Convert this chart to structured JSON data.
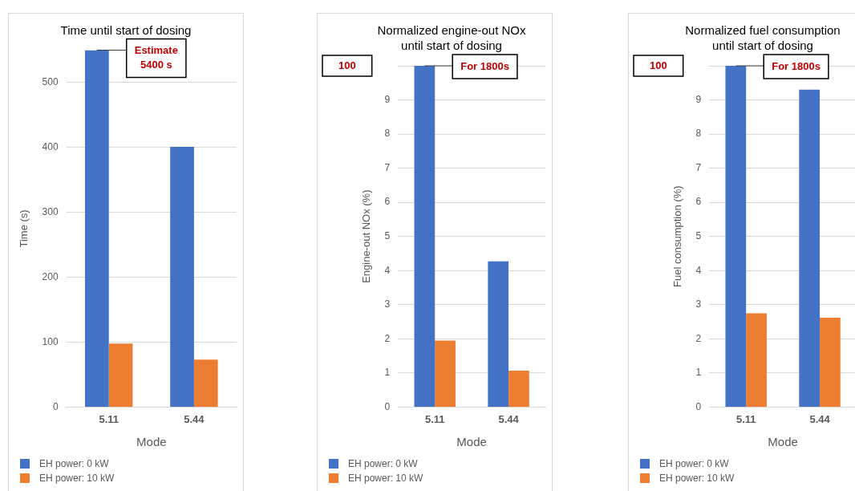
{
  "chart_data": [
    {
      "type": "bar",
      "title": "Time until start of dosing",
      "xlabel": "Mode",
      "ylabel": "Time (s)",
      "categories": [
        "5.11",
        "5.44"
      ],
      "series": [
        {
          "name": "EH power: 0 kW",
          "color": "#4472c4",
          "values": [
            550,
            401
          ]
        },
        {
          "name": "EH power: 10 kW",
          "color": "#ed7d31",
          "values": [
            98,
            73
          ]
        }
      ],
      "ylim": [
        0,
        550
      ],
      "yticks": [
        0,
        100,
        200,
        300,
        400,
        500
      ],
      "grid": "y",
      "legend": "bottom left",
      "annotations": [
        {
          "text": "Estimate 5400 s",
          "x": "5.11",
          "y": 550
        }
      ]
    },
    {
      "type": "bar",
      "title": "Normalized engine-out NOx until start of dosing",
      "xlabel": "Mode",
      "ylabel": "Engine-out NOx (%)",
      "categories": [
        "5.11",
        "5.44"
      ],
      "series": [
        {
          "name": "EH power: 0 kW",
          "color": "#4472c4",
          "values": [
            10,
            4.27
          ]
        },
        {
          "name": "EH power: 10 kW",
          "color": "#ed7d31",
          "values": [
            1.95,
            1.07
          ]
        }
      ],
      "ylim": [
        0,
        10
      ],
      "yticks": [
        0,
        1,
        2,
        3,
        4,
        5,
        6,
        7,
        8,
        9,
        {
          "value": 10,
          "label": null
        }
      ],
      "grid": "y",
      "legend": "bottom left",
      "annotations": [
        "100",
        {
          "text": "For 1800s",
          "x": "5.11",
          "y": 10
        }
      ]
    },
    {
      "type": "bar",
      "title": "Normalized fuel consumption until start of dosing",
      "xlabel": "Mode",
      "ylabel": "Fuel consumption (%)",
      "categories": [
        "5.11",
        "5.44"
      ],
      "series": [
        {
          "name": "EH power: 0 kW",
          "color": "#4472c4",
          "values": [
            10,
            9.3
          ]
        },
        {
          "name": "EH power: 10 kW",
          "color": "#ed7d31",
          "values": [
            2.75,
            2.62
          ]
        }
      ],
      "ylim": [
        0,
        10
      ],
      "yticks": [
        0,
        1,
        2,
        3,
        4,
        5,
        6,
        7,
        8,
        9,
        {
          "value": 10,
          "label": null
        }
      ],
      "grid": "y",
      "legend": "bottom left",
      "annotations": [
        "100",
        {
          "text": "For 1800s",
          "x": "5.11",
          "y": 10
        }
      ]
    }
  ]
}
